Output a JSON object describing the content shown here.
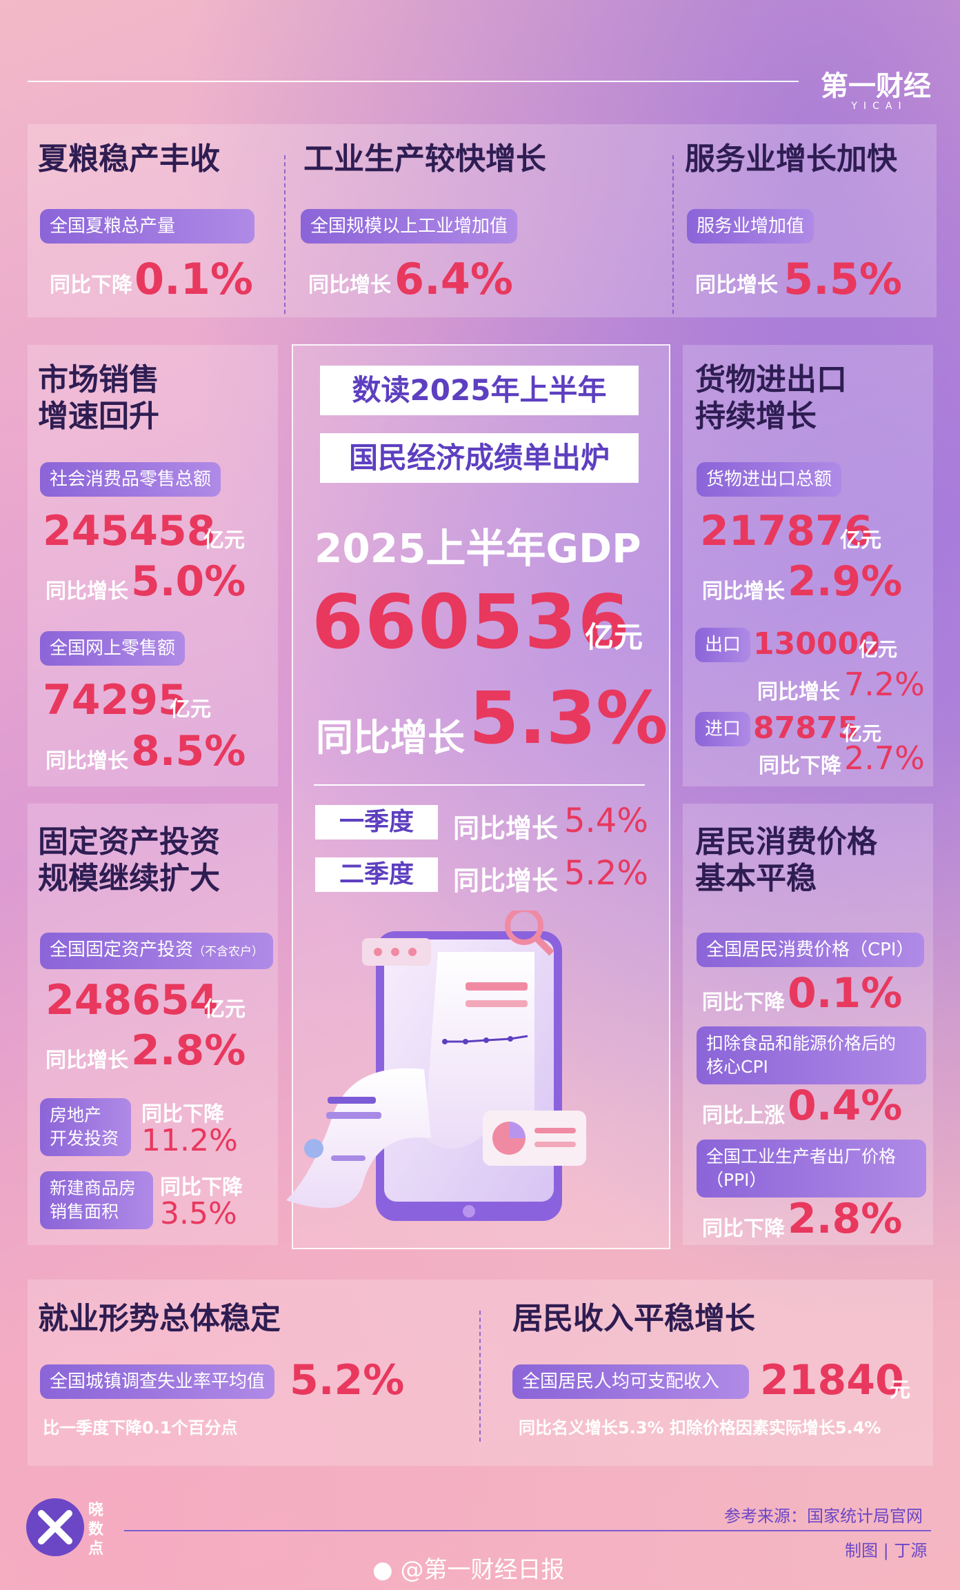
{
  "brand": {
    "logo": "第一财经",
    "logo_sub": "YICAI"
  },
  "summer_grain": {
    "title": "夏粮稳产丰收",
    "pill": "全国夏粮总产量",
    "label": "同比下降",
    "value": "0.1%"
  },
  "industry": {
    "title": "工业生产较快增长",
    "pill": "全国规模以上工业增加值",
    "label": "同比增长",
    "value": "6.4%"
  },
  "services": {
    "title": "服务业增长加快",
    "pill": "服务业增加值",
    "label": "同比增长",
    "value": "5.5%"
  },
  "retail": {
    "title_line1": "市场销售",
    "title_line2": "增速回升",
    "pill1": "社会消费品零售总额",
    "value1": "245458",
    "unit1": "亿元",
    "label1": "同比增长",
    "growth1": "5.0%",
    "pill2": "全国网上零售额",
    "value2": "74295",
    "unit2": "亿元",
    "label2": "同比增长",
    "growth2": "8.5%"
  },
  "center": {
    "title1": "数读2025年上半年",
    "title2": "国民经济成绩单出炉",
    "gdp_label": "2025上半年GDP",
    "gdp_value": "660536",
    "gdp_unit": "亿元",
    "growth_label": "同比增长",
    "growth_value": "5.3%",
    "q1_label": "一季度",
    "q1_text": "同比增长",
    "q1_value": "5.4%",
    "q2_label": "二季度",
    "q2_text": "同比增长",
    "q2_value": "5.2%"
  },
  "trade": {
    "title_line1": "货物进出口",
    "title_line2": "持续增长",
    "pill": "货物进出口总额",
    "value": "217876",
    "unit": "亿元",
    "label": "同比增长",
    "growth": "2.9%",
    "export_tag": "出口",
    "export_value": "130000",
    "export_unit": "亿元",
    "export_label": "同比增长",
    "export_growth": "7.2%",
    "import_tag": "进口",
    "import_value": "87875",
    "import_unit": "亿元",
    "import_label": "同比下降",
    "import_growth": "2.7%"
  },
  "investment": {
    "title_line1": "固定资产投资",
    "title_line2": "规模继续扩大",
    "pill": "全国固定资产投资",
    "pill_note": "（不含农户）",
    "value": "248654",
    "unit": "亿元",
    "label": "同比增长",
    "growth": "2.8%",
    "re_tag_line1": "房地产",
    "re_tag_line2": "开发投资",
    "re_label": "同比下降",
    "re_value": "11.2%",
    "nb_tag_line1": "新建商品房",
    "nb_tag_line2": "销售面积",
    "nb_label": "同比下降",
    "nb_value": "3.5%"
  },
  "cpi": {
    "title_line1": "居民消费价格",
    "title_line2": "基本平稳",
    "pill1": "全国居民消费价格（CPI）",
    "label1": "同比下降",
    "value1": "0.1%",
    "pill2_line1": "扣除食品和能源价格后的",
    "pill2_line2": "核心CPI",
    "label2": "同比上涨",
    "value2": "0.4%",
    "pill3_line1": "全国工业生产者出厂价格",
    "pill3_line2": "（PPI）",
    "label3": "同比下降",
    "value3": "2.8%"
  },
  "employment": {
    "title": "就业形势总体稳定",
    "pill": "全国城镇调查失业率平均值",
    "value": "5.2%",
    "note": "比一季度下降0.1个百分点"
  },
  "income": {
    "title": "居民收入平稳增长",
    "pill": "全国居民人均可支配收入",
    "value": "21840",
    "unit": "元",
    "note": "同比名义增长5.3% 扣除价格因素实际增长5.4%"
  },
  "footer": {
    "badge": "晓数点",
    "source": "参考来源：国家统计局官网",
    "credit": "制图 | 丁源",
    "weibo": "@第一财经日报"
  }
}
